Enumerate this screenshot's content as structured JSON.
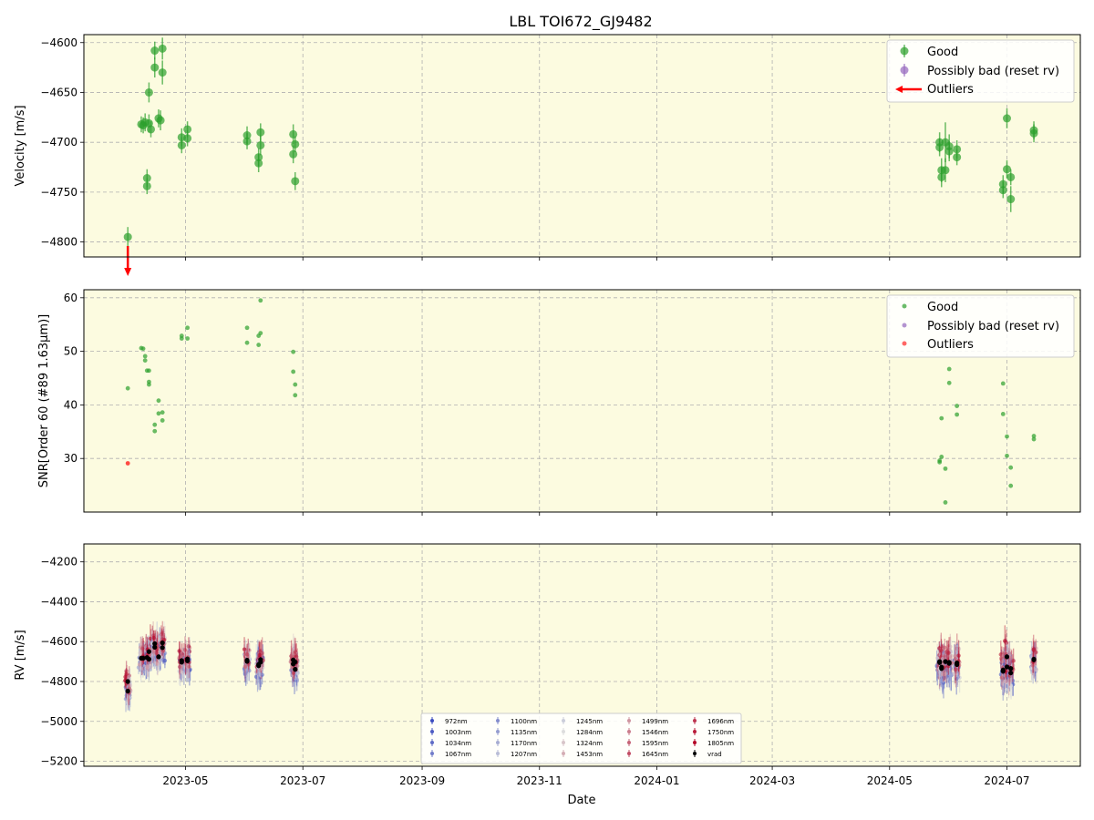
{
  "figure": {
    "title": "LBL TOI672_GJ9482",
    "xlabel": "Date",
    "background": "#fcfbe0",
    "x_ticks": [
      "2023-05",
      "2023-07",
      "2023-09",
      "2023-11",
      "2024-01",
      "2024-03",
      "2024-05",
      "2024-07"
    ]
  },
  "colors": {
    "good": "#2ca02c",
    "possibly_bad": "#9467bd",
    "outliers": "#ff0000",
    "vrad": "#000000"
  },
  "chart_data": [
    {
      "type": "scatter",
      "ylabel": "Velocity [m/s]",
      "ylim": [
        -4815,
        -4592
      ],
      "yticks": [
        -4800,
        -4750,
        -4700,
        -4650,
        -4600
      ],
      "grid": true,
      "legend_placement": "top-right",
      "legend": [
        "Good",
        "Possibly bad (reset rv)",
        "Outliers"
      ],
      "series": [
        {
          "name": "Good",
          "points": [
            [
              "2023-04-01",
              -4795,
              10
            ],
            [
              "2023-04-08",
              -4682,
              8
            ],
            [
              "2023-04-09",
              -4683,
              8
            ],
            [
              "2023-04-10",
              -4680,
              9
            ],
            [
              "2023-04-11",
              -4736,
              9
            ],
            [
              "2023-04-11",
              -4744,
              8
            ],
            [
              "2023-04-12",
              -4650,
              10
            ],
            [
              "2023-04-12",
              -4681,
              9
            ],
            [
              "2023-04-13",
              -4687,
              8
            ],
            [
              "2023-04-15",
              -4608,
              9
            ],
            [
              "2023-04-15",
              -4625,
              10
            ],
            [
              "2023-04-17",
              -4676,
              9
            ],
            [
              "2023-04-18",
              -4678,
              10
            ],
            [
              "2023-04-19",
              -4606,
              11
            ],
            [
              "2023-04-19",
              -4630,
              12
            ],
            [
              "2023-04-29",
              -4695,
              9
            ],
            [
              "2023-04-29",
              -4703,
              8
            ],
            [
              "2023-05-02",
              -4687,
              8
            ],
            [
              "2023-05-02",
              -4696,
              8
            ],
            [
              "2023-06-02",
              -4693,
              9
            ],
            [
              "2023-06-02",
              -4699,
              8
            ],
            [
              "2023-06-08",
              -4715,
              9
            ],
            [
              "2023-06-08",
              -4721,
              9
            ],
            [
              "2023-06-09",
              -4690,
              9
            ],
            [
              "2023-06-09",
              -4703,
              10
            ],
            [
              "2023-06-26",
              -4692,
              10
            ],
            [
              "2023-06-26",
              -4712,
              9
            ],
            [
              "2023-06-27",
              -4702,
              8
            ],
            [
              "2023-06-27",
              -4739,
              9
            ],
            [
              "2024-05-27",
              -4700,
              10
            ],
            [
              "2024-05-27",
              -4705,
              9
            ],
            [
              "2024-05-28",
              -4728,
              12
            ],
            [
              "2024-05-28",
              -4735,
              10
            ],
            [
              "2024-05-30",
              -4700,
              20
            ],
            [
              "2024-05-30",
              -4728,
              12
            ],
            [
              "2024-06-01",
              -4704,
              12
            ],
            [
              "2024-06-01",
              -4709,
              10
            ],
            [
              "2024-06-05",
              -4707,
              9
            ],
            [
              "2024-06-05",
              -4715,
              8
            ],
            [
              "2024-06-29",
              -4742,
              9
            ],
            [
              "2024-06-29",
              -4748,
              8
            ],
            [
              "2024-07-01",
              -4676,
              10
            ],
            [
              "2024-07-01",
              -4727,
              9
            ],
            [
              "2024-07-03",
              -4735,
              8
            ],
            [
              "2024-07-03",
              -4757,
              13
            ],
            [
              "2024-07-15",
              -4688,
              9
            ],
            [
              "2024-07-15",
              -4691,
              9
            ]
          ]
        },
        {
          "name": "Outliers",
          "points": [
            [
              "2023-04-01",
              -4830
            ]
          ]
        }
      ]
    },
    {
      "type": "scatter",
      "ylabel": "SNR[Order 60 (#89 1.63μm)]",
      "ylim": [
        20,
        61.5
      ],
      "yticks": [
        30,
        40,
        50,
        60
      ],
      "grid": true,
      "legend_placement": "top-right",
      "legend": [
        "Good",
        "Possibly bad (reset rv)",
        "Outliers"
      ],
      "series": [
        {
          "name": "Good",
          "points": [
            [
              "2023-04-01",
              43.1
            ],
            [
              "2023-04-08",
              50.6
            ],
            [
              "2023-04-09",
              50.5
            ],
            [
              "2023-04-10",
              49.1
            ],
            [
              "2023-04-10",
              48.3
            ],
            [
              "2023-04-11",
              46.4
            ],
            [
              "2023-04-12",
              46.4
            ],
            [
              "2023-04-12",
              44.3
            ],
            [
              "2023-04-12",
              43.8
            ],
            [
              "2023-04-15",
              36.3
            ],
            [
              "2023-04-15",
              35.1
            ],
            [
              "2023-04-17",
              40.8
            ],
            [
              "2023-04-17",
              38.4
            ],
            [
              "2023-04-19",
              38.6
            ],
            [
              "2023-04-19",
              37.1
            ],
            [
              "2023-04-29",
              52.9
            ],
            [
              "2023-04-29",
              52.4
            ],
            [
              "2023-05-02",
              54.4
            ],
            [
              "2023-05-02",
              52.4
            ],
            [
              "2023-06-02",
              54.4
            ],
            [
              "2023-06-02",
              51.6
            ],
            [
              "2023-06-08",
              51.2
            ],
            [
              "2023-06-08",
              52.9
            ],
            [
              "2023-06-09",
              53.4
            ],
            [
              "2023-06-09",
              59.5
            ],
            [
              "2023-06-26",
              49.9
            ],
            [
              "2023-06-26",
              46.2
            ],
            [
              "2023-06-27",
              43.8
            ],
            [
              "2023-06-27",
              41.8
            ],
            [
              "2024-05-27",
              29.3
            ],
            [
              "2024-05-27",
              29.6
            ],
            [
              "2024-05-28",
              37.5
            ],
            [
              "2024-05-28",
              30.3
            ],
            [
              "2024-05-30",
              28.1
            ],
            [
              "2024-05-30",
              21.8
            ],
            [
              "2024-06-01",
              46.7
            ],
            [
              "2024-06-01",
              44.1
            ],
            [
              "2024-06-05",
              39.8
            ],
            [
              "2024-06-05",
              38.2
            ],
            [
              "2024-06-29",
              44.0
            ],
            [
              "2024-06-29",
              38.3
            ],
            [
              "2024-07-01",
              34.1
            ],
            [
              "2024-07-01",
              30.5
            ],
            [
              "2024-07-03",
              28.3
            ],
            [
              "2024-07-03",
              24.9
            ],
            [
              "2024-07-15",
              34.2
            ],
            [
              "2024-07-15",
              33.6
            ]
          ]
        },
        {
          "name": "Outliers",
          "points": [
            [
              "2023-04-01",
              29.1
            ]
          ]
        }
      ]
    },
    {
      "type": "scatter",
      "ylabel": "RV [m/s]",
      "ylim": [
        -5225,
        -4110
      ],
      "yticks": [
        -5200,
        -5000,
        -4800,
        -4600,
        -4400,
        -4200
      ],
      "grid": true,
      "legend_placement": "bottom-center",
      "legend": [
        "972nm",
        "1003nm",
        "1034nm",
        "1067nm",
        "1100nm",
        "1135nm",
        "1170nm",
        "1207nm",
        "1245nm",
        "1284nm",
        "1324nm",
        "1453nm",
        "1499nm",
        "1546nm",
        "1595nm",
        "1645nm",
        "1696nm",
        "1750nm",
        "1805nm",
        "vrad"
      ],
      "series": [
        {
          "name": "vrad",
          "points": [
            [
              "2023-04-01",
              -4800
            ],
            [
              "2023-04-01",
              -4848
            ],
            [
              "2023-04-08",
              -4683
            ],
            [
              "2023-04-09",
              -4683
            ],
            [
              "2023-04-11",
              -4680
            ],
            [
              "2023-04-12",
              -4650
            ],
            [
              "2023-04-12",
              -4688
            ],
            [
              "2023-04-15",
              -4610
            ],
            [
              "2023-04-15",
              -4628
            ],
            [
              "2023-04-17",
              -4676
            ],
            [
              "2023-04-19",
              -4606
            ],
            [
              "2023-04-19",
              -4630
            ],
            [
              "2023-04-29",
              -4695
            ],
            [
              "2023-04-29",
              -4703
            ],
            [
              "2023-05-02",
              -4687
            ],
            [
              "2023-05-02",
              -4696
            ],
            [
              "2023-06-02",
              -4693
            ],
            [
              "2023-06-02",
              -4699
            ],
            [
              "2023-06-08",
              -4715
            ],
            [
              "2023-06-08",
              -4721
            ],
            [
              "2023-06-09",
              -4690
            ],
            [
              "2023-06-09",
              -4703
            ],
            [
              "2023-06-26",
              -4692
            ],
            [
              "2023-06-26",
              -4712
            ],
            [
              "2023-06-27",
              -4702
            ],
            [
              "2023-06-27",
              -4739
            ],
            [
              "2024-05-27",
              -4700
            ],
            [
              "2024-05-27",
              -4705
            ],
            [
              "2024-05-28",
              -4728
            ],
            [
              "2024-05-28",
              -4735
            ],
            [
              "2024-05-30",
              -4700
            ],
            [
              "2024-06-01",
              -4704
            ],
            [
              "2024-06-01",
              -4709
            ],
            [
              "2024-06-05",
              -4707
            ],
            [
              "2024-06-05",
              -4715
            ],
            [
              "2024-06-29",
              -4742
            ],
            [
              "2024-06-29",
              -4748
            ],
            [
              "2024-07-01",
              -4676
            ],
            [
              "2024-07-01",
              -4727
            ],
            [
              "2024-07-03",
              -4735
            ],
            [
              "2024-07-03",
              -4757
            ],
            [
              "2024-07-15",
              -4688
            ],
            [
              "2024-07-15",
              -4691
            ]
          ]
        }
      ]
    }
  ]
}
